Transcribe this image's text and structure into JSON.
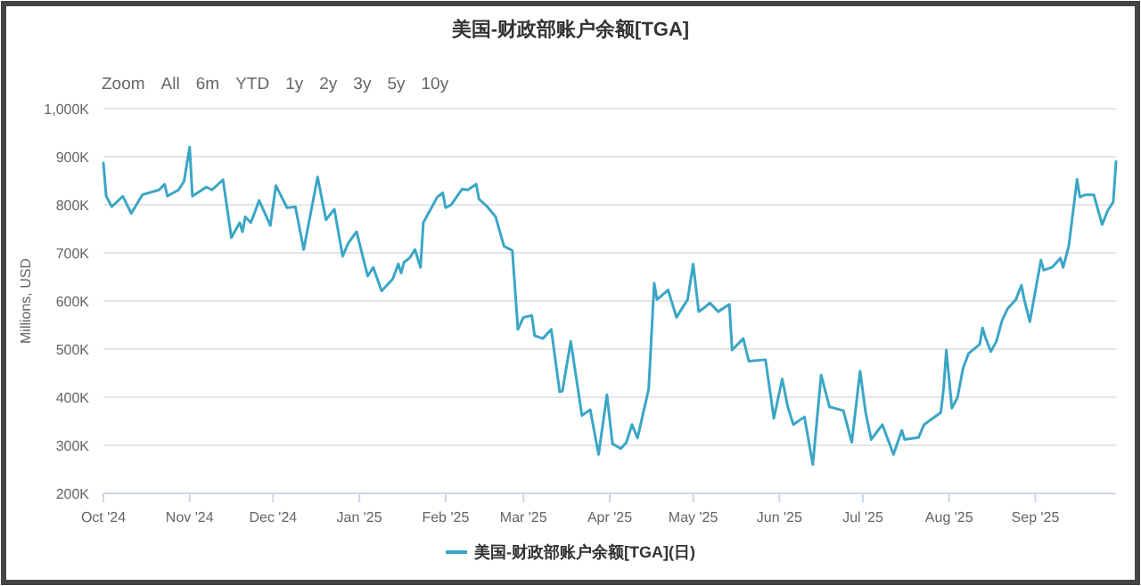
{
  "chart_data": {
    "type": "line",
    "title": "美国-财政部账户余额[TGA]",
    "ylabel": "Millions, USD",
    "annotations": [
      "Zoom",
      "All",
      "6m",
      "YTD",
      "1y",
      "2y",
      "3y",
      "5y",
      "10y"
    ],
    "xlim": [
      "2024-10-01",
      "2025-09-30"
    ],
    "xticks": [
      {
        "value": "2024-10-01",
        "label": "Oct '24"
      },
      {
        "value": "2024-11-01",
        "label": "Nov '24"
      },
      {
        "value": "2024-12-01",
        "label": "Dec '24"
      },
      {
        "value": "2025-01-01",
        "label": "Jan '25"
      },
      {
        "value": "2025-02-01",
        "label": "Feb '25"
      },
      {
        "value": "2025-03-01",
        "label": "Mar '25"
      },
      {
        "value": "2025-04-01",
        "label": "Apr '25"
      },
      {
        "value": "2025-05-01",
        "label": "May '25"
      },
      {
        "value": "2025-06-01",
        "label": "Jun '25"
      },
      {
        "value": "2025-07-01",
        "label": "Jul '25"
      },
      {
        "value": "2025-08-01",
        "label": "Aug '25"
      },
      {
        "value": "2025-09-01",
        "label": "Sep '25"
      }
    ],
    "ylim": [
      200000,
      1000000
    ],
    "yticks": [
      {
        "value": 200000,
        "label": "200K"
      },
      {
        "value": 300000,
        "label": "300K"
      },
      {
        "value": 400000,
        "label": "400K"
      },
      {
        "value": 500000,
        "label": "500K"
      },
      {
        "value": 600000,
        "label": "600K"
      },
      {
        "value": 700000,
        "label": "700K"
      },
      {
        "value": 800000,
        "label": "800K"
      },
      {
        "value": 900000,
        "label": "900K"
      },
      {
        "value": 1000000,
        "label": "1,000K"
      }
    ],
    "grid": "y",
    "legend": "bottom",
    "marker": "none",
    "line_style": "solid",
    "series": [
      {
        "name": "美国-财政部账户余额[TGA](日)",
        "color": "#3ba6c6",
        "x": [
          "2024-10-01",
          "2024-10-02",
          "2024-10-04",
          "2024-10-08",
          "2024-10-11",
          "2024-10-15",
          "2024-10-21",
          "2024-10-23",
          "2024-10-24",
          "2024-10-28",
          "2024-10-30",
          "2024-11-01",
          "2024-11-02",
          "2024-11-07",
          "2024-11-09",
          "2024-11-13",
          "2024-11-14",
          "2024-11-16",
          "2024-11-19",
          "2024-11-20",
          "2024-11-21",
          "2024-11-23",
          "2024-11-26",
          "2024-11-30",
          "2024-12-02",
          "2024-12-06",
          "2024-12-09",
          "2024-12-12",
          "2024-12-17",
          "2024-12-20",
          "2024-12-23",
          "2024-12-26",
          "2024-12-28",
          "2024-12-31",
          "2025-01-04",
          "2025-01-06",
          "2025-01-09",
          "2025-01-13",
          "2025-01-15",
          "2025-01-16",
          "2025-01-17",
          "2025-01-19",
          "2025-01-21",
          "2025-01-23",
          "2025-01-24",
          "2025-01-29",
          "2025-01-31",
          "2025-02-01",
          "2025-02-03",
          "2025-02-06",
          "2025-02-07",
          "2025-02-09",
          "2025-02-12",
          "2025-02-13",
          "2025-02-16",
          "2025-02-19",
          "2025-02-22",
          "2025-02-25",
          "2025-02-27",
          "2025-03-01",
          "2025-03-04",
          "2025-03-05",
          "2025-03-08",
          "2025-03-11",
          "2025-03-14",
          "2025-03-15",
          "2025-03-18",
          "2025-03-22",
          "2025-03-25",
          "2025-03-28",
          "2025-03-31",
          "2025-04-02",
          "2025-04-05",
          "2025-04-07",
          "2025-04-09",
          "2025-04-11",
          "2025-04-15",
          "2025-04-17",
          "2025-04-18",
          "2025-04-22",
          "2025-04-25",
          "2025-04-29",
          "2025-05-01",
          "2025-05-03",
          "2025-05-05",
          "2025-05-07",
          "2025-05-10",
          "2025-05-14",
          "2025-05-15",
          "2025-05-19",
          "2025-05-21",
          "2025-05-27",
          "2025-05-30",
          "2025-06-02",
          "2025-06-04",
          "2025-06-06",
          "2025-06-10",
          "2025-06-13",
          "2025-06-16",
          "2025-06-19",
          "2025-06-24",
          "2025-06-27",
          "2025-06-30",
          "2025-07-02",
          "2025-07-04",
          "2025-07-08",
          "2025-07-12",
          "2025-07-15",
          "2025-07-16",
          "2025-07-21",
          "2025-07-23",
          "2025-07-29",
          "2025-07-30",
          "2025-07-31",
          "2025-08-02",
          "2025-08-04",
          "2025-08-06",
          "2025-08-08",
          "2025-08-12",
          "2025-08-13",
          "2025-08-14",
          "2025-08-16",
          "2025-08-18",
          "2025-08-20",
          "2025-08-22",
          "2025-08-25",
          "2025-08-27",
          "2025-08-28",
          "2025-08-30",
          "2025-09-03",
          "2025-09-04",
          "2025-09-07",
          "2025-09-10",
          "2025-09-11",
          "2025-09-13",
          "2025-09-16",
          "2025-09-17",
          "2025-09-19",
          "2025-09-22",
          "2025-09-25",
          "2025-09-27",
          "2025-09-29",
          "2025-09-30"
        ],
        "values": [
          887000,
          818000,
          796000,
          818000,
          782000,
          821000,
          831000,
          843000,
          818000,
          831000,
          849000,
          920000,
          818000,
          837000,
          831000,
          852000,
          812000,
          732000,
          763000,
          744000,
          775000,
          763000,
          809000,
          757000,
          840000,
          794000,
          796000,
          707000,
          858000,
          769000,
          791000,
          693000,
          720000,
          744000,
          652000,
          670000,
          621000,
          646000,
          677000,
          658000,
          680000,
          689000,
          707000,
          670000,
          763000,
          816000,
          825000,
          794000,
          800000,
          825000,
          833000,
          831000,
          843000,
          812000,
          796000,
          775000,
          714000,
          705000,
          541000,
          566000,
          570000,
          528000,
          522000,
          541000,
          411000,
          413000,
          516000,
          362000,
          374000,
          281000,
          405000,
          303000,
          293000,
          306000,
          343000,
          315000,
          417000,
          637000,
          603000,
          623000,
          566000,
          603000,
          677000,
          578000,
          586000,
          596000,
          578000,
          593000,
          498000,
          522000,
          475000,
          478000,
          356000,
          438000,
          380000,
          343000,
          359000,
          260000,
          446000,
          380000,
          372000,
          306000,
          454000,
          368000,
          312000,
          343000,
          281000,
          331000,
          312000,
          316000,
          343000,
          368000,
          417000,
          498000,
          377000,
          399000,
          460000,
          491000,
          510000,
          544000,
          525000,
          495000,
          516000,
          559000,
          584000,
          603000,
          633000,
          603000,
          557000,
          685000,
          664000,
          670000,
          689000,
          670000,
          714000,
          853000,
          816000,
          821000,
          821000,
          759000,
          788000,
          806000,
          890000
        ]
      }
    ]
  }
}
